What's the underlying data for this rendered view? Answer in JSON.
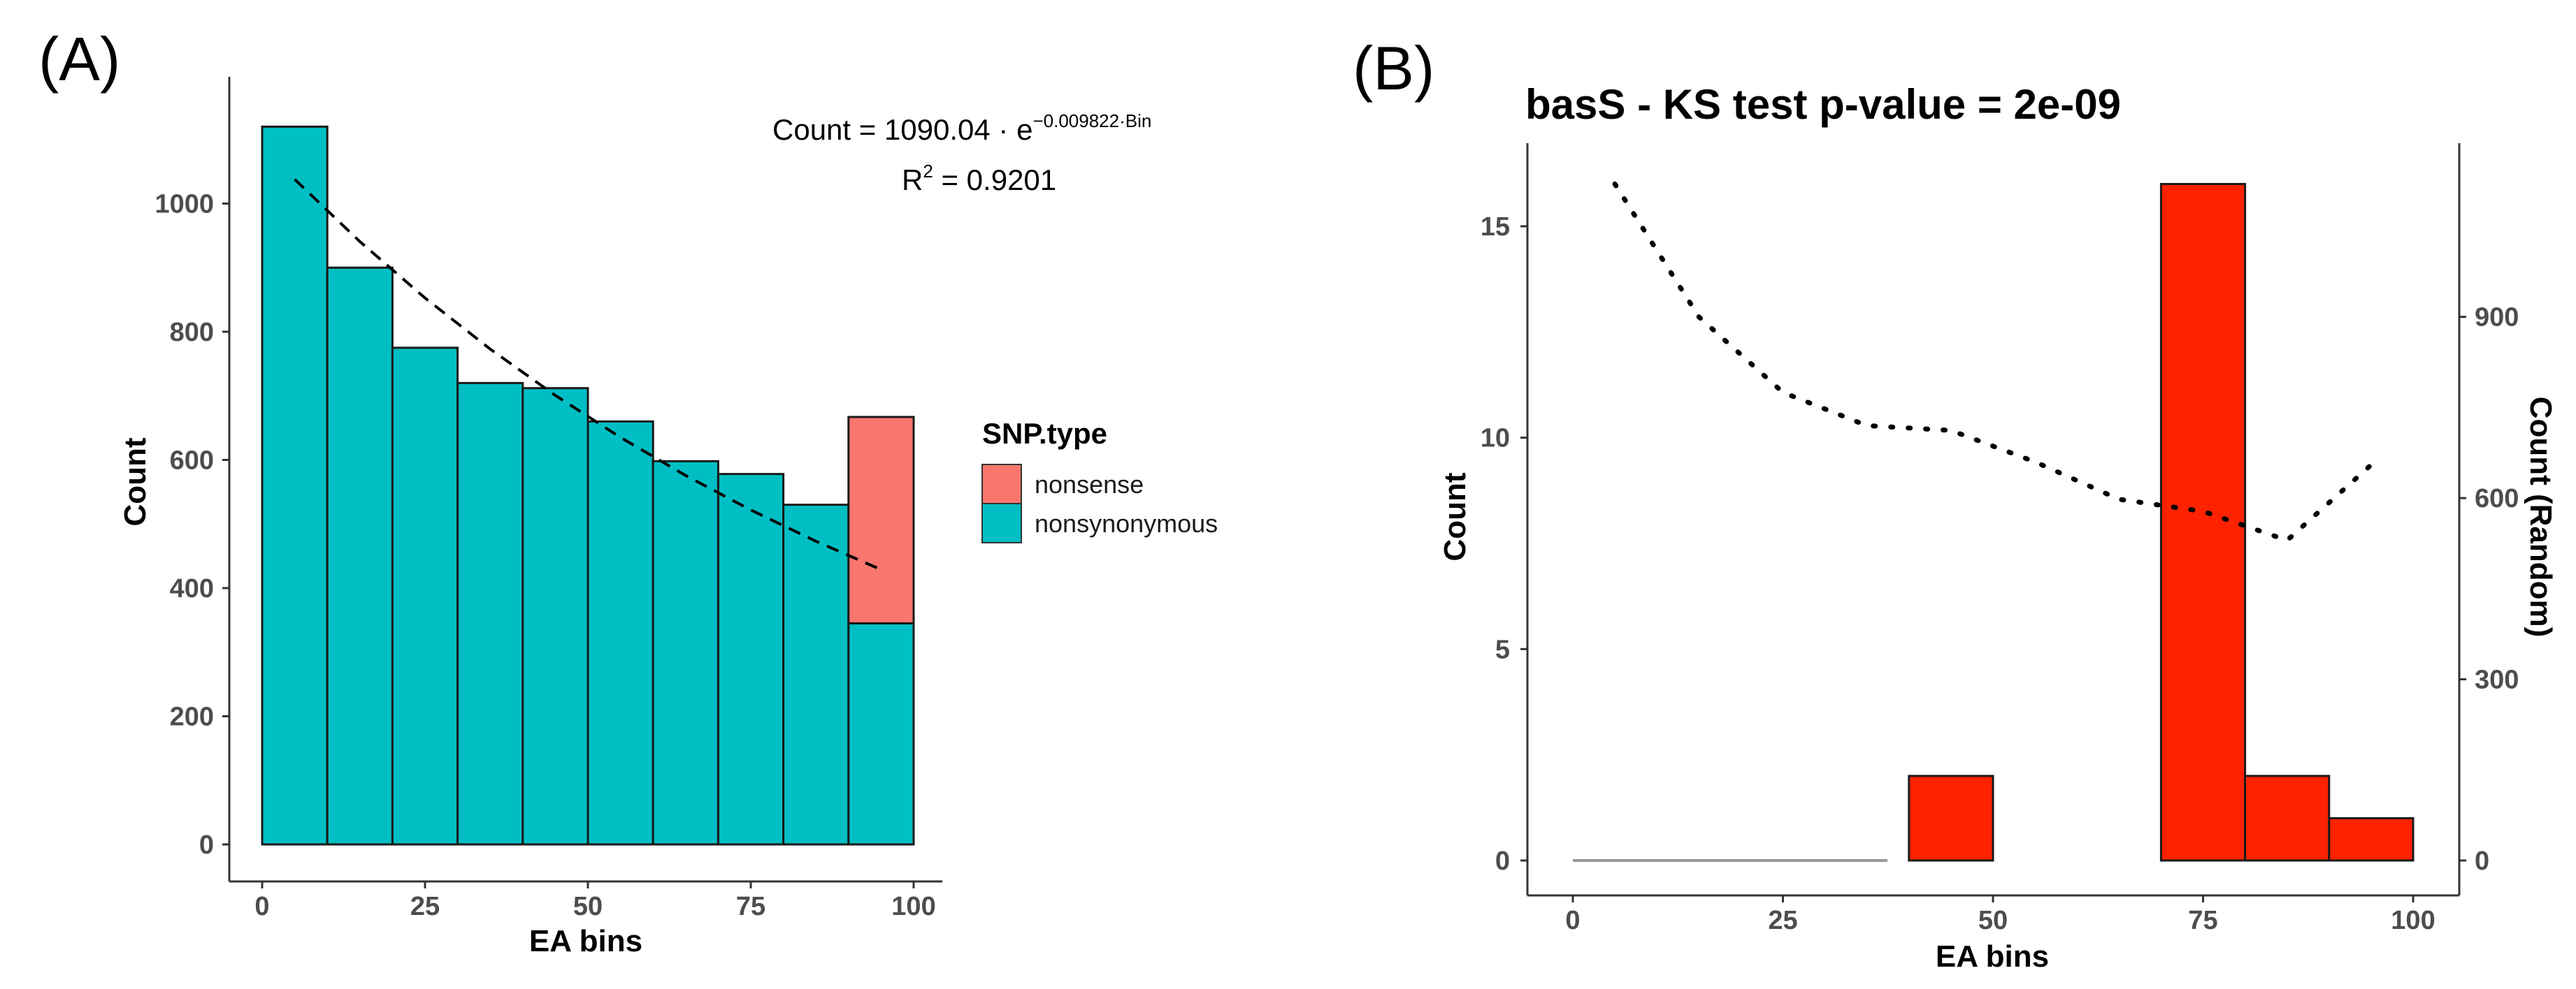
{
  "panels": {
    "a_label": "(A)",
    "b_label": "(B)"
  },
  "chart_data": [
    {
      "type": "bar",
      "panel": "(A)",
      "title": "",
      "xlabel": "EA bins",
      "ylabel": "Count",
      "xlim": [
        0,
        100
      ],
      "ylim": [
        0,
        1140
      ],
      "x_ticks": [
        0,
        25,
        50,
        75,
        100
      ],
      "y_ticks": [
        0,
        200,
        400,
        600,
        800,
        1000
      ],
      "bin_edges": [
        0,
        10,
        20,
        30,
        40,
        50,
        60,
        70,
        80,
        90,
        100
      ],
      "stacked": true,
      "series": [
        {
          "name": "nonsense",
          "color": "#F8766D",
          "values": [
            0,
            0,
            0,
            0,
            0,
            0,
            0,
            0,
            0,
            322
          ]
        },
        {
          "name": "nonsynonymous",
          "color": "#00BFC4",
          "values": [
            1120,
            900,
            775,
            720,
            712,
            660,
            598,
            578,
            530,
            345
          ]
        }
      ],
      "legend": {
        "title": "SNP.type",
        "position": "right",
        "items": [
          "nonsense",
          "nonsynonymous"
        ]
      },
      "fit": {
        "style": "dashed",
        "x": [
          5,
          15,
          25,
          35,
          45,
          55,
          65,
          75,
          85,
          95
        ],
        "y": [
          1037.8,
          940.7,
          852.7,
          773.0,
          700.7,
          635.1,
          575.7,
          521.9,
          473.1,
          428.8
        ]
      },
      "annotation": {
        "eq_lhs": "Count  =  1090.04 · e",
        "eq_exp": "−0.009822·Bin",
        "r2_prefix": "R",
        "r2_sup": "2",
        "r2_value": " = 0.9201"
      },
      "grid": false
    },
    {
      "type": "bar",
      "panel": "(B)",
      "title": "basS - KS test p-value = 2e-09",
      "xlabel": "EA bins",
      "ylabel": "Count",
      "y2label": "Count (Random)",
      "xlim": [
        0,
        100
      ],
      "ylim": [
        0,
        16.8
      ],
      "y2lim": [
        0,
        1176
      ],
      "x_ticks": [
        0,
        25,
        50,
        75,
        100
      ],
      "y_ticks": [
        0,
        5,
        10,
        15
      ],
      "y2_ticks": [
        0,
        300,
        600,
        900
      ],
      "bin_edges": [
        0,
        10,
        20,
        30,
        40,
        50,
        60,
        70,
        80,
        90,
        100
      ],
      "series": [
        {
          "name": "",
          "color": "#FF2200",
          "values": [
            0,
            0,
            0,
            0,
            2,
            0,
            0,
            16,
            2,
            1
          ]
        }
      ],
      "random_line": {
        "style": "dotted",
        "axis": "secondary",
        "x": [
          5,
          15,
          25,
          35,
          45,
          55,
          65,
          75,
          85,
          95
        ],
        "y": [
          1120,
          900,
          775,
          720,
          712,
          660,
          598,
          578,
          530,
          655
        ]
      },
      "grid": false
    }
  ]
}
